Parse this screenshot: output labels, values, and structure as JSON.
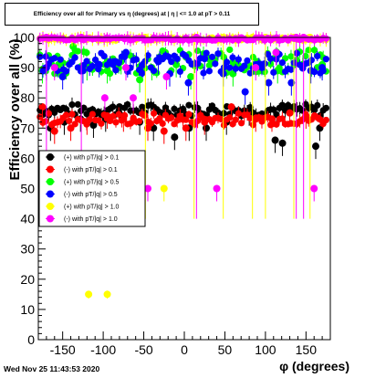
{
  "title": "Efficiency over all for Primary vs η (degrees) at | η | <= 1.0 at pT > 0.11",
  "footer": "Wed Nov 25 11:43:53 2020",
  "colors": {
    "pos_pt01": "#000000",
    "neg_pt01": "#ff0000",
    "pos_pt05": "#00ff00",
    "neg_pt05": "#0000ff",
    "pos_pt10": "#ffff00",
    "neg_pt10": "#ff00ff"
  },
  "chart_data": {
    "type": "scatter",
    "title": "Efficiency over all for Primary vs η (degrees) at | η | <= 1.0 at pT > 0.11",
    "xlabel": "φ (degrees)",
    "ylabel": "Efficiency over all (%)",
    "xlim": [
      -180,
      180
    ],
    "ylim": [
      0,
      100
    ],
    "xticks": [
      -150,
      -100,
      -50,
      0,
      50,
      100,
      150
    ],
    "yticks": [
      0,
      10,
      20,
      30,
      40,
      50,
      60,
      70,
      80,
      90,
      100
    ],
    "legend_position": "left",
    "series": [
      {
        "name": "(+) with pT/|q| > 0.1",
        "color": "#000000",
        "band": [
          74,
          78
        ],
        "x": [
          -165,
          -148,
          -128,
          -112,
          -97,
          -80,
          -55,
          -38,
          -12,
          6,
          27,
          52,
          80,
          112,
          121,
          162,
          167
        ],
        "y": [
          70,
          72,
          73,
          71,
          73,
          77,
          72,
          70,
          67,
          70,
          70,
          72,
          75,
          66,
          65,
          64,
          70
        ]
      },
      {
        "name": "(-) with pT/|q| > 0.1",
        "color": "#ff0000",
        "band": [
          71,
          75
        ],
        "x": [
          -175,
          -160,
          -140,
          -120,
          -95,
          -75,
          -45,
          -25,
          2,
          25,
          58,
          88,
          108,
          130,
          150
        ],
        "y": [
          77,
          69,
          70,
          72,
          74,
          73,
          70,
          69,
          70,
          72,
          77,
          73,
          73,
          75,
          74
        ]
      },
      {
        "name": "(+) with pT/|q| > 0.5",
        "color": "#00ff00",
        "band": [
          88,
          96
        ],
        "x": [
          -175,
          -155,
          -137,
          -120,
          -95,
          -78,
          -55,
          -40,
          -10,
          8,
          30,
          60,
          90,
          115,
          140,
          170
        ],
        "y": [
          89,
          91,
          97,
          90,
          89,
          92,
          86,
          90,
          91,
          87,
          93,
          88,
          92,
          89,
          95,
          91
        ]
      },
      {
        "name": "(-) with pT/|q| > 0.5",
        "color": "#0000ff",
        "band": [
          88,
          95
        ],
        "x": [
          -170,
          -150,
          -125,
          -105,
          -85,
          -72,
          -51,
          -32,
          -18,
          5,
          25,
          48,
          75,
          104,
          132,
          156,
          170
        ],
        "y": [
          90,
          87,
          89,
          91,
          92,
          95,
          91,
          92,
          88,
          85,
          93,
          88,
          82,
          85,
          85,
          89,
          90
        ]
      },
      {
        "name": "(+) with pT/|q| > 1.0",
        "color": "#ffff00",
        "band": [
          99,
          100
        ],
        "x": [
          -118,
          -95,
          -85,
          -48,
          -25,
          12,
          48,
          84,
          100,
          135,
          155
        ],
        "y": [
          15,
          15,
          60,
          100,
          50,
          100,
          100,
          100,
          100,
          100,
          100
        ]
      },
      {
        "name": "(-) with pT/|q| > 1.0",
        "color": "#ff00ff",
        "band": [
          99,
          100
        ],
        "x": [
          -170,
          -160,
          -127,
          -98,
          -72,
          -63,
          -45,
          -22,
          15,
          40,
          88,
          113,
          138,
          147,
          160
        ],
        "y": [
          100,
          90,
          100,
          80,
          90,
          80,
          50,
          87,
          100,
          50,
          90,
          95,
          100,
          100,
          50
        ]
      }
    ]
  }
}
